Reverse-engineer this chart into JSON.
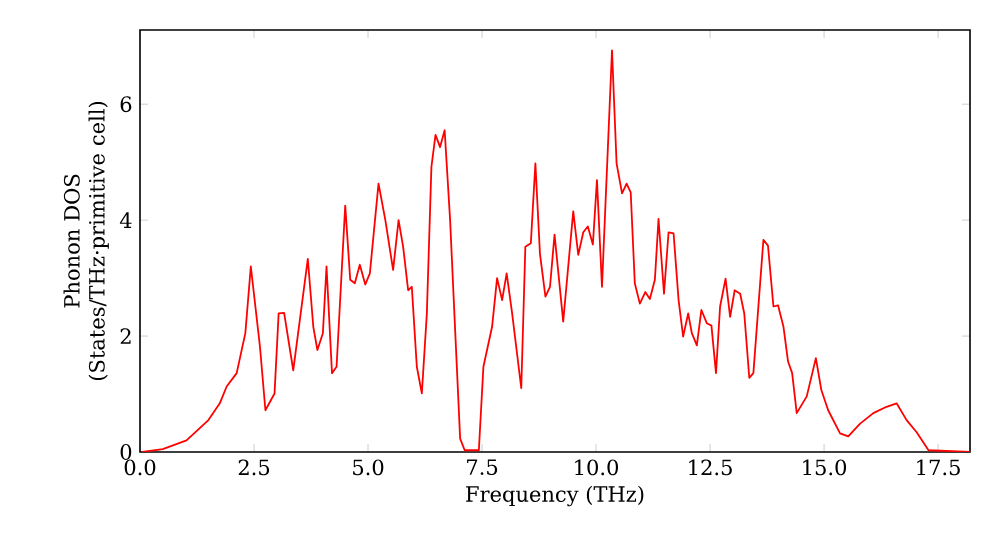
{
  "chart_data": {
    "type": "line",
    "xlabel": "Frequency (THz)",
    "ylabel": "Phonon DOS (States/THz·primitive cell)",
    "xlim": [
      0,
      18.2
    ],
    "ylim": [
      0,
      7.28
    ],
    "xticks": [
      {
        "value": 0,
        "label": "0.0"
      },
      {
        "value": 2.5,
        "label": "2.5"
      },
      {
        "value": 5,
        "label": "5.0"
      },
      {
        "value": 7.5,
        "label": "7.5"
      },
      {
        "value": 10,
        "label": "10.0"
      },
      {
        "value": 12.5,
        "label": "12.5"
      },
      {
        "value": 15,
        "label": "15.0"
      },
      {
        "value": 17.5,
        "label": "17.5"
      }
    ],
    "yticks": [
      0,
      2,
      4,
      6
    ],
    "marker": "none",
    "line_style": "solid",
    "series": [
      {
        "color": "#ff0000",
        "x": [
          0.05,
          0.5,
          1.02,
          1.5,
          1.75,
          1.9,
          2.12,
          2.31,
          2.43,
          2.63,
          2.75,
          2.95,
          3.04,
          3.16,
          3.36,
          3.68,
          3.8,
          3.89,
          4.01,
          4.09,
          4.21,
          4.31,
          4.5,
          4.61,
          4.71,
          4.82,
          4.94,
          5.04,
          5.23,
          5.38,
          5.55,
          5.67,
          5.77,
          5.88,
          5.96,
          6.07,
          6.18,
          6.29,
          6.39,
          6.48,
          6.58,
          6.68,
          6.8,
          6.9,
          7.02,
          7.12,
          7.43,
          7.53,
          7.72,
          7.83,
          7.94,
          8.04,
          8.16,
          8.36,
          8.45,
          8.57,
          8.67,
          8.77,
          8.89,
          8.99,
          9.09,
          9.28,
          9.5,
          9.61,
          9.72,
          9.82,
          9.93,
          10.02,
          10.13,
          10.35,
          10.45,
          10.57,
          10.67,
          10.76,
          10.85,
          10.96,
          11.08,
          11.18,
          11.29,
          11.37,
          11.49,
          11.59,
          11.7,
          11.81,
          11.91,
          12.02,
          12.1,
          12.21,
          12.31,
          12.43,
          12.53,
          12.63,
          12.72,
          12.84,
          12.94,
          13.04,
          13.16,
          13.25,
          13.36,
          13.45,
          13.57,
          13.67,
          13.77,
          13.89,
          13.99,
          14.11,
          14.21,
          14.3,
          14.4,
          14.62,
          14.82,
          14.94,
          15.09,
          15.35,
          15.53,
          15.79,
          16.08,
          16.37,
          16.59,
          16.81,
          17.03,
          17.29,
          18.2
        ],
        "values": [
          0,
          0.05,
          0.2,
          0.55,
          0.84,
          1.13,
          1.36,
          2.05,
          3.2,
          1.82,
          0.72,
          1.01,
          2.39,
          2.4,
          1.41,
          3.33,
          2.16,
          1.76,
          2.05,
          3.2,
          1.36,
          1.47,
          4.25,
          2.97,
          2.91,
          3.23,
          2.89,
          3.08,
          4.63,
          4.0,
          3.14,
          4.0,
          3.54,
          2.79,
          2.85,
          1.47,
          1.01,
          2.39,
          4.92,
          5.47,
          5.26,
          5.55,
          4.0,
          2.28,
          0.23,
          0.03,
          0.03,
          1.47,
          2.16,
          3.0,
          2.62,
          3.08,
          2.39,
          1.1,
          3.54,
          3.6,
          4.98,
          3.42,
          2.68,
          2.85,
          3.75,
          2.25,
          4.15,
          3.4,
          3.79,
          3.89,
          3.58,
          4.69,
          2.85,
          6.93,
          4.98,
          4.46,
          4.63,
          4.48,
          2.91,
          2.56,
          2.76,
          2.64,
          2.97,
          4.02,
          2.73,
          3.79,
          3.77,
          2.62,
          1.99,
          2.39,
          2.05,
          1.84,
          2.45,
          2.22,
          2.18,
          1.36,
          2.51,
          2.99,
          2.33,
          2.79,
          2.73,
          2.39,
          1.28,
          1.36,
          2.62,
          3.66,
          3.56,
          2.51,
          2.53,
          2.16,
          1.56,
          1.36,
          0.67,
          0.96,
          1.62,
          1.07,
          0.72,
          0.32,
          0.27,
          0.49,
          0.67,
          0.78,
          0.84,
          0.55,
          0.34,
          0.03,
          0
        ]
      }
    ]
  }
}
